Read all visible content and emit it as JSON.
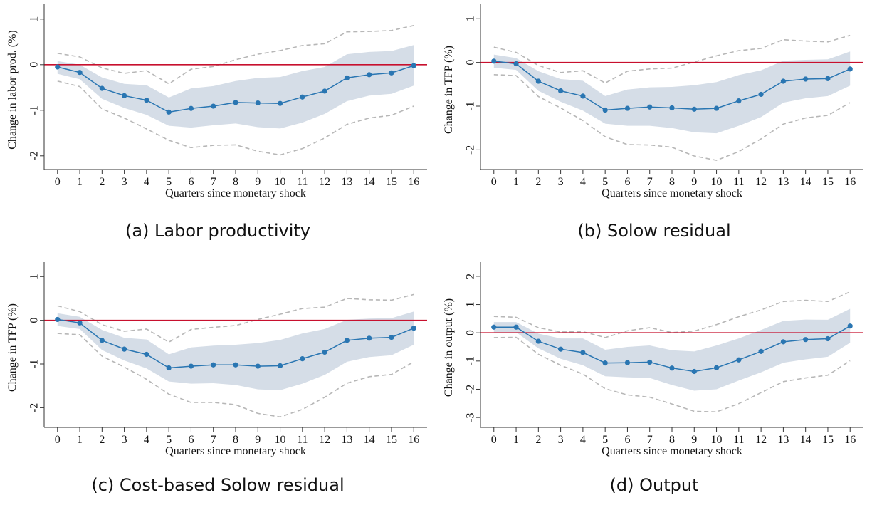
{
  "chart_data": [
    {
      "type": "line",
      "caption": "(a) Labor productivity",
      "xlabel": "Quarters since monetary shock",
      "ylabel": "Change in labor prod. (%)",
      "x": [
        0,
        1,
        2,
        3,
        4,
        5,
        6,
        7,
        8,
        9,
        10,
        11,
        12,
        13,
        14,
        15,
        16
      ],
      "xticks": [
        0,
        1,
        2,
        3,
        4,
        5,
        6,
        7,
        8,
        9,
        10,
        11,
        12,
        13,
        14,
        15,
        16
      ],
      "yticks": [
        1,
        0,
        -1,
        -2
      ],
      "ylim": [
        -2.3,
        1.2
      ],
      "reference_line": 0,
      "estimate": [
        -0.05,
        -0.17,
        -0.52,
        -0.68,
        -0.78,
        -1.04,
        -0.96,
        -0.91,
        -0.83,
        -0.84,
        -0.85,
        -0.71,
        -0.58,
        -0.29,
        -0.22,
        -0.18,
        -0.02
      ],
      "band_upper": [
        0.08,
        0.0,
        -0.28,
        -0.42,
        -0.45,
        -0.72,
        -0.52,
        -0.47,
        -0.36,
        -0.29,
        -0.27,
        -0.14,
        -0.05,
        0.23,
        0.28,
        0.3,
        0.43
      ],
      "band_lower": [
        -0.2,
        -0.32,
        -0.75,
        -0.95,
        -1.1,
        -1.34,
        -1.38,
        -1.33,
        -1.29,
        -1.37,
        -1.4,
        -1.27,
        -1.08,
        -0.8,
        -0.68,
        -0.64,
        -0.46
      ],
      "ci_upper": [
        0.25,
        0.17,
        -0.07,
        -0.19,
        -0.13,
        -0.42,
        -0.1,
        -0.04,
        0.11,
        0.23,
        0.31,
        0.42,
        0.46,
        0.72,
        0.73,
        0.75,
        0.86
      ],
      "ci_lower": [
        -0.36,
        -0.48,
        -0.97,
        -1.17,
        -1.41,
        -1.66,
        -1.82,
        -1.77,
        -1.76,
        -1.9,
        -1.98,
        -1.84,
        -1.61,
        -1.31,
        -1.17,
        -1.11,
        -0.91
      ],
      "colors": {
        "estimate": "#2a76b2",
        "band": "#d5dde7",
        "ci": "#b7b7b7",
        "zero_line": "#c8102e"
      }
    },
    {
      "type": "line",
      "caption": "(b) Solow residual",
      "xlabel": "Quarters since monetary shock",
      "ylabel": "Change in TFP (%)",
      "x": [
        0,
        1,
        2,
        3,
        4,
        5,
        6,
        7,
        8,
        9,
        10,
        11,
        12,
        13,
        14,
        15,
        16
      ],
      "xticks": [
        0,
        1,
        2,
        3,
        4,
        5,
        6,
        7,
        8,
        9,
        10,
        11,
        12,
        13,
        14,
        15,
        16
      ],
      "yticks": [
        1,
        0,
        -1,
        -2
      ],
      "ylim": [
        -2.45,
        1.2
      ],
      "reference_line": 0,
      "estimate": [
        0.03,
        -0.03,
        -0.43,
        -0.65,
        -0.77,
        -1.09,
        -1.05,
        -1.02,
        -1.04,
        -1.07,
        -1.05,
        -0.88,
        -0.73,
        -0.43,
        -0.38,
        -0.37,
        -0.15
      ],
      "band_upper": [
        0.18,
        0.1,
        -0.2,
        -0.38,
        -0.42,
        -0.77,
        -0.62,
        -0.57,
        -0.56,
        -0.52,
        -0.45,
        -0.29,
        -0.18,
        0.04,
        0.06,
        0.07,
        0.25
      ],
      "band_lower": [
        -0.12,
        -0.17,
        -0.65,
        -0.9,
        -1.1,
        -1.4,
        -1.45,
        -1.45,
        -1.5,
        -1.6,
        -1.62,
        -1.45,
        -1.25,
        -0.92,
        -0.82,
        -0.77,
        -0.53
      ],
      "ci_upper": [
        0.35,
        0.23,
        -0.07,
        -0.23,
        -0.19,
        -0.47,
        -0.2,
        -0.15,
        -0.13,
        0.01,
        0.15,
        0.27,
        0.32,
        0.52,
        0.49,
        0.47,
        0.62
      ],
      "ci_lower": [
        -0.28,
        -0.3,
        -0.78,
        -1.04,
        -1.33,
        -1.7,
        -1.88,
        -1.89,
        -1.94,
        -2.14,
        -2.24,
        -2.04,
        -1.75,
        -1.41,
        -1.27,
        -1.21,
        -0.92
      ],
      "colors": {
        "estimate": "#2a76b2",
        "band": "#d5dde7",
        "ci": "#b7b7b7",
        "zero_line": "#c8102e"
      }
    },
    {
      "type": "line",
      "caption": "(c) Cost-based Solow residual",
      "xlabel": "Quarters since monetary shock",
      "ylabel": "Change in TFP (%)",
      "x": [
        0,
        1,
        2,
        3,
        4,
        5,
        6,
        7,
        8,
        9,
        10,
        11,
        12,
        13,
        14,
        15,
        16
      ],
      "xticks": [
        0,
        1,
        2,
        3,
        4,
        5,
        6,
        7,
        8,
        9,
        10,
        11,
        12,
        13,
        14,
        15,
        16
      ],
      "yticks": [
        1,
        0,
        -1,
        -2
      ],
      "ylim": [
        -2.45,
        1.2
      ],
      "reference_line": 0,
      "estimate": [
        0.02,
        -0.06,
        -0.46,
        -0.66,
        -0.78,
        -1.09,
        -1.05,
        -1.02,
        -1.02,
        -1.05,
        -1.04,
        -0.88,
        -0.73,
        -0.46,
        -0.41,
        -0.39,
        -0.18
      ],
      "band_upper": [
        0.16,
        0.08,
        -0.22,
        -0.4,
        -0.44,
        -0.78,
        -0.62,
        -0.58,
        -0.56,
        -0.52,
        -0.45,
        -0.3,
        -0.2,
        0.01,
        0.04,
        0.05,
        0.2
      ],
      "band_lower": [
        -0.13,
        -0.2,
        -0.68,
        -0.92,
        -1.1,
        -1.4,
        -1.45,
        -1.44,
        -1.48,
        -1.58,
        -1.6,
        -1.45,
        -1.25,
        -0.95,
        -0.84,
        -0.8,
        -0.56
      ],
      "ci_upper": [
        0.33,
        0.2,
        -0.1,
        -0.25,
        -0.2,
        -0.5,
        -0.21,
        -0.16,
        -0.12,
        0.02,
        0.14,
        0.27,
        0.3,
        0.5,
        0.47,
        0.46,
        0.59
      ],
      "ci_lower": [
        -0.3,
        -0.33,
        -0.82,
        -1.07,
        -1.35,
        -1.69,
        -1.88,
        -1.88,
        -1.93,
        -2.13,
        -2.21,
        -2.04,
        -1.76,
        -1.44,
        -1.29,
        -1.24,
        -0.95
      ],
      "colors": {
        "estimate": "#2a76b2",
        "band": "#d5dde7",
        "ci": "#b7b7b7",
        "zero_line": "#c8102e"
      }
    },
    {
      "type": "line",
      "caption": "(d) Output",
      "xlabel": "Quarters since monetary shock",
      "ylabel": "Change in output (%)",
      "x": [
        0,
        1,
        2,
        3,
        4,
        5,
        6,
        7,
        8,
        9,
        10,
        11,
        12,
        13,
        14,
        15,
        16
      ],
      "xticks": [
        0,
        1,
        2,
        3,
        4,
        5,
        6,
        7,
        8,
        9,
        10,
        11,
        12,
        13,
        14,
        15,
        16
      ],
      "yticks": [
        2,
        1,
        0,
        -1,
        -2,
        -3
      ],
      "ylim": [
        -3.35,
        2.3
      ],
      "reference_line": 0,
      "estimate": [
        0.2,
        0.2,
        -0.3,
        -0.58,
        -0.7,
        -1.07,
        -1.06,
        -1.04,
        -1.25,
        -1.37,
        -1.24,
        -0.96,
        -0.66,
        -0.32,
        -0.24,
        -0.21,
        0.24
      ],
      "band_upper": [
        0.38,
        0.38,
        -0.03,
        -0.2,
        -0.2,
        -0.6,
        -0.5,
        -0.45,
        -0.62,
        -0.66,
        -0.45,
        -0.2,
        0.1,
        0.42,
        0.47,
        0.46,
        0.85
      ],
      "band_lower": [
        0.02,
        0.02,
        -0.55,
        -0.92,
        -1.15,
        -1.54,
        -1.58,
        -1.6,
        -1.85,
        -2.05,
        -2.0,
        -1.69,
        -1.4,
        -1.06,
        -0.94,
        -0.85,
        -0.35
      ],
      "ci_upper": [
        0.58,
        0.55,
        0.18,
        0.03,
        0.04,
        -0.17,
        0.07,
        0.18,
        0.01,
        0.06,
        0.29,
        0.57,
        0.81,
        1.11,
        1.15,
        1.11,
        1.45
      ],
      "ci_lower": [
        -0.17,
        -0.16,
        -0.76,
        -1.15,
        -1.46,
        -1.98,
        -2.2,
        -2.28,
        -2.52,
        -2.78,
        -2.8,
        -2.51,
        -2.12,
        -1.73,
        -1.6,
        -1.5,
        -0.99
      ],
      "colors": {
        "estimate": "#2a76b2",
        "band": "#d5dde7",
        "ci": "#b7b7b7",
        "zero_line": "#c8102e"
      }
    }
  ]
}
